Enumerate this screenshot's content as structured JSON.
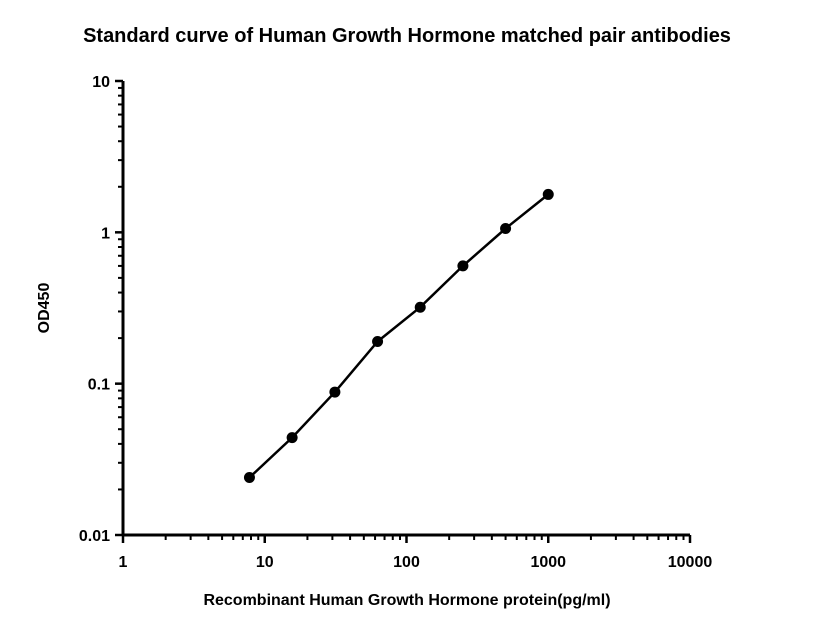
{
  "chart_data": {
    "type": "scatter",
    "title": "Standard curve of Human Growth Hormone matched pair antibodies",
    "xlabel": "Recombinant Human Growth Hormone protein(pg/ml)",
    "ylabel": "OD450",
    "xscale": "log",
    "yscale": "log",
    "xlim": [
      1,
      10000
    ],
    "ylim": [
      0.01,
      10
    ],
    "xticks": [
      "1",
      "10",
      "100",
      "1000",
      "10000"
    ],
    "yticks": [
      "10",
      "1",
      "0.1",
      "0.01"
    ],
    "grid": false,
    "legend": "none",
    "series": [
      {
        "x": [
          7.8,
          15.6,
          31.25,
          62.5,
          125,
          250,
          500,
          1000
        ],
        "y": [
          0.024,
          0.044,
          0.088,
          0.19,
          0.32,
          0.6,
          1.06,
          1.78
        ],
        "marker_color": "#000000",
        "line_color": "#000000",
        "fit": "line"
      }
    ]
  }
}
